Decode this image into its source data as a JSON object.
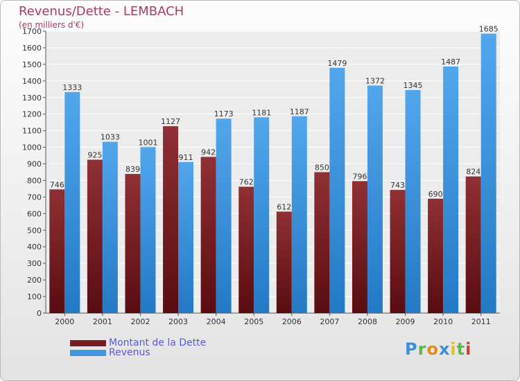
{
  "chart_data": {
    "type": "bar",
    "title": "Revenus/Dette - LEMBACH",
    "subtitle": "(en milliers d'€)",
    "categories": [
      "2000",
      "2001",
      "2002",
      "2003",
      "2004",
      "2005",
      "2006",
      "2007",
      "2008",
      "2009",
      "2010",
      "2011"
    ],
    "series": [
      {
        "name": "Montant de la Dette",
        "values": [
          746,
          925,
          839,
          1127,
          942,
          762,
          612,
          850,
          796,
          743,
          690,
          824
        ],
        "color": "#7a1d21"
      },
      {
        "name": "Revenus",
        "values": [
          1333,
          1033,
          1001,
          911,
          1173,
          1181,
          1187,
          1479,
          1372,
          1345,
          1487,
          1685
        ],
        "color": "#3d97e3"
      }
    ],
    "yticks": [
      0,
      100,
      200,
      300,
      400,
      500,
      600,
      700,
      800,
      900,
      1000,
      1100,
      1200,
      1300,
      1400,
      1500,
      1600,
      1700
    ],
    "ylim": [
      0,
      1700
    ],
    "grid": true,
    "legend_position": "bottom-left"
  },
  "colors": {
    "title": "#b03a5b",
    "legend_text": "#5a5ad8"
  },
  "logo": {
    "text": "Proxiti",
    "letters": [
      {
        "char": "P",
        "color": "#3a8fd6"
      },
      {
        "char": "r",
        "color": "#5cb848"
      },
      {
        "char": "o",
        "color": "#e88a1a"
      },
      {
        "char": "x",
        "color": "#3a8fd6"
      },
      {
        "char": "i",
        "color": "#e0c21a"
      },
      {
        "char": "t",
        "color": "#5cb848"
      },
      {
        "char": "i",
        "color": "#d83a3a"
      }
    ]
  }
}
